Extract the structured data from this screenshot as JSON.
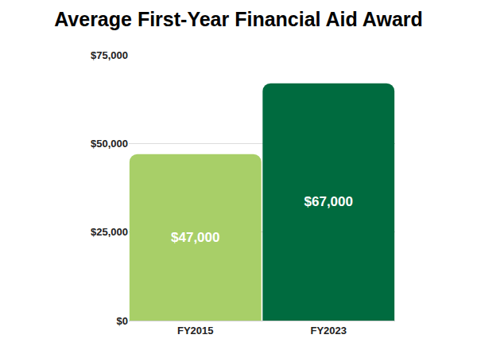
{
  "chart_data": {
    "type": "bar",
    "title": "Average First-Year Financial Aid Award",
    "categories": [
      "FY2015",
      "FY2023"
    ],
    "values": [
      47000,
      67000
    ],
    "value_labels": [
      "$47,000",
      "$67,000"
    ],
    "data_labels": true,
    "colors": [
      "#a8cf68",
      "#006b3f"
    ],
    "ylim": [
      0,
      75000
    ],
    "yticks": [
      {
        "value": 0,
        "label": "$0"
      },
      {
        "value": 25000,
        "label": "$25,000"
      },
      {
        "value": 50000,
        "label": "$50,000"
      },
      {
        "value": 75000,
        "label": "$75,000"
      }
    ],
    "grid": true
  }
}
